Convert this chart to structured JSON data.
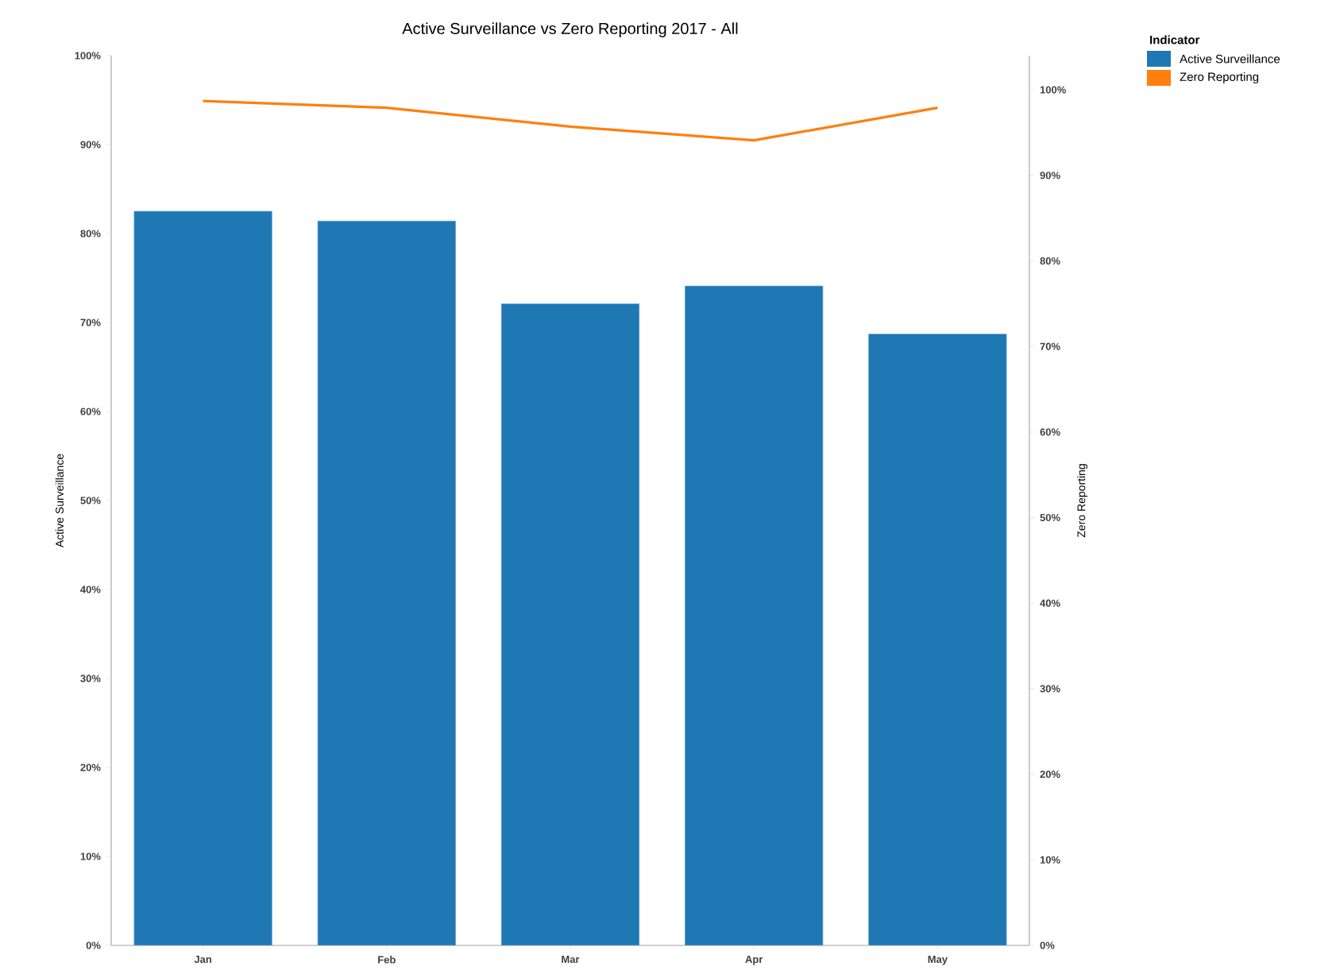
{
  "chart_data": {
    "type": "bar",
    "title": "Active Surveillance vs Zero Reporting 2017 - All",
    "ylabel": "Active Surveillance",
    "y2label": "Zero Reporting",
    "legend_title": "Indicator",
    "categories": [
      "Jan",
      "Feb",
      "Mar",
      "Apr",
      "May"
    ],
    "series": [
      {
        "name": "Active Surveillance",
        "color": "#1f77b4",
        "values": [
          82.5,
          81.4,
          72.1,
          74.1,
          68.7
        ]
      },
      {
        "name": "Zero Reporting",
        "type": "line",
        "axis": "y2",
        "color": "#ff7f0e",
        "values": [
          98.7,
          97.9,
          95.7,
          94.1,
          97.9
        ]
      }
    ],
    "ylim": [
      0,
      100
    ],
    "yticks": [
      {
        "value": 0,
        "label": "0%"
      },
      {
        "value": 10,
        "label": "10%"
      },
      {
        "value": 20,
        "label": "20%"
      },
      {
        "value": 30,
        "label": "30%"
      },
      {
        "value": 40,
        "label": "40%"
      },
      {
        "value": 50,
        "label": "50%"
      },
      {
        "value": 60,
        "label": "60%"
      },
      {
        "value": 70,
        "label": "70%"
      },
      {
        "value": 80,
        "label": "80%"
      },
      {
        "value": 90,
        "label": "90%"
      },
      {
        "value": 100,
        "label": "100%"
      }
    ],
    "y2lim": [
      0,
      104
    ],
    "y2ticks": [
      {
        "value": 0,
        "label": "0%"
      },
      {
        "value": 10,
        "label": "10%"
      },
      {
        "value": 20,
        "label": "20%"
      },
      {
        "value": 30,
        "label": "30%"
      },
      {
        "value": 40,
        "label": "40%"
      },
      {
        "value": 50,
        "label": "50%"
      },
      {
        "value": 60,
        "label": "60%"
      },
      {
        "value": 70,
        "label": "70%"
      },
      {
        "value": 80,
        "label": "80%"
      },
      {
        "value": 90,
        "label": "90%"
      },
      {
        "value": 100,
        "label": "100%"
      }
    ],
    "grid": false,
    "legend": "top right",
    "marker": "none",
    "line_style": "solid"
  }
}
